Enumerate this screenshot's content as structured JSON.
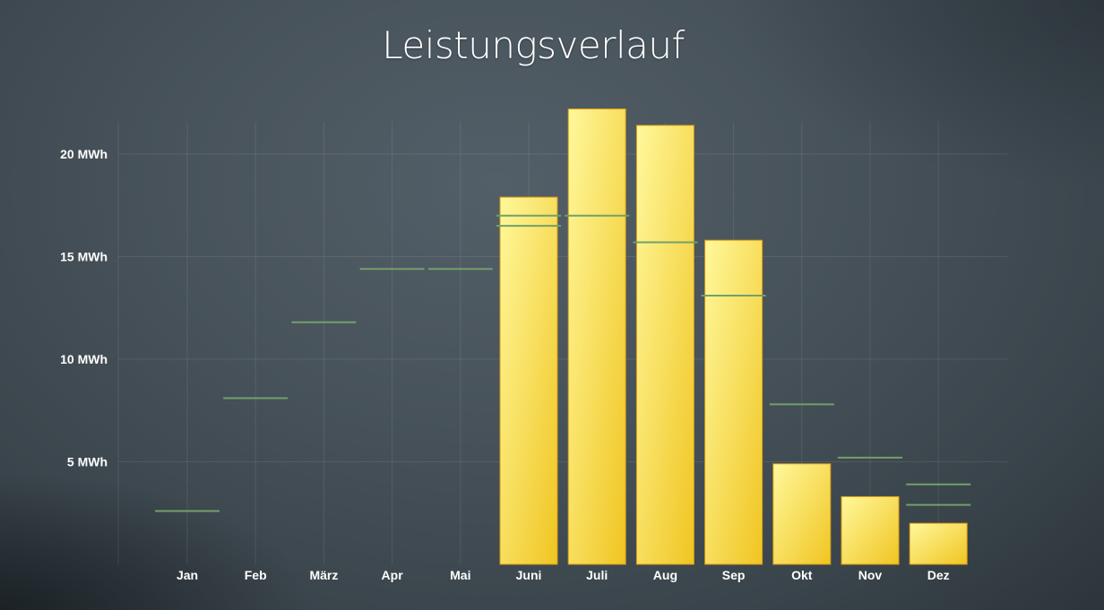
{
  "chart_data": {
    "type": "bar",
    "title": "Leistungsverlauf",
    "xlabel": "",
    "ylabel": "",
    "unit": "MWh",
    "categories": [
      "Jan",
      "Feb",
      "März",
      "Apr",
      "Mai",
      "Juni",
      "Juli",
      "Aug",
      "Sep",
      "Okt",
      "Nov",
      "Dez"
    ],
    "series": [
      {
        "type": "bar",
        "values": [
          null,
          null,
          null,
          null,
          null,
          17.9,
          22.2,
          21.4,
          15.8,
          4.9,
          3.3,
          2.0
        ]
      },
      {
        "type": "reference-line",
        "values": [
          2.6,
          8.1,
          11.8,
          14.4,
          14.4,
          17.0,
          17.0,
          15.7,
          13.1,
          7.8,
          5.2,
          3.9
        ]
      },
      {
        "type": "reference-line",
        "values": [
          null,
          null,
          null,
          null,
          null,
          16.5,
          null,
          null,
          null,
          null,
          null,
          2.9
        ]
      }
    ],
    "ylim": [
      0,
      22.5
    ],
    "yticks": [
      5,
      10,
      15,
      20
    ],
    "ytick_labels": [
      "5 MWh",
      "10 MWh",
      "15 MWh",
      "20 MWh"
    ],
    "grid": true,
    "legend": "none"
  },
  "colors": {
    "bar_light": "#fff89c",
    "bar_dark": "#f0c521",
    "bar_border": "#d89a12",
    "reference_line": "#72a06a",
    "grid": "rgba(255,255,255,0.09)"
  }
}
